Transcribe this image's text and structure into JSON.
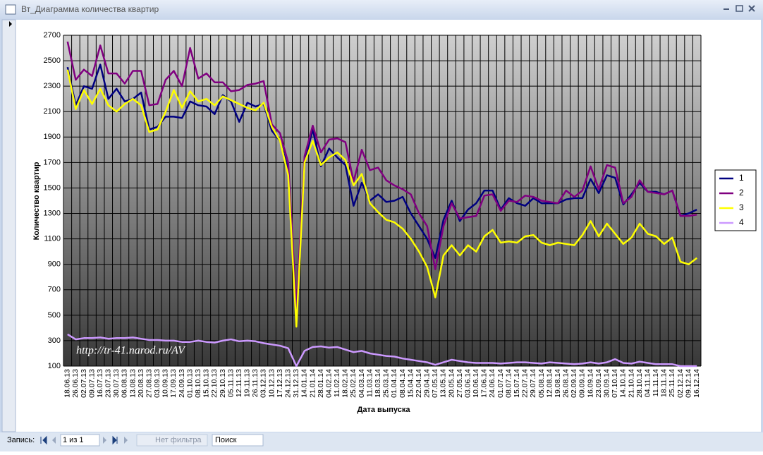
{
  "window": {
    "title": "Вт_Диаграмма количества квартир"
  },
  "chart_data": {
    "type": "line",
    "ylabel": "Количество квартир",
    "xlabel": "Дата выпуска",
    "annotation": "http://tr-41.narod.ru/AV",
    "categories": [
      "18.06.13",
      "26.06.13",
      "02.07.13",
      "09.07.13",
      "16.07.13",
      "23.07.13",
      "30.07.13",
      "06.08.13",
      "13.08.13",
      "20.08.13",
      "27.08.13",
      "03.09.13",
      "10.09.13",
      "17.09.13",
      "24.09.13",
      "01.10.13",
      "08.10.13",
      "15.10.13",
      "22.10.13",
      "29.10.13",
      "05.11.13",
      "12.11.13",
      "19.11.13",
      "26.11.13",
      "03.12.13",
      "10.12.13",
      "17.12.13",
      "24.12.13",
      "31.12.13",
      "14.01.14",
      "21.01.14",
      "28.01.14",
      "04.02.14",
      "11.02.14",
      "18.02.14",
      "25.02.14",
      "04.03.14",
      "11.03.14",
      "18.03.14",
      "25.03.14",
      "01.04.14",
      "08.04.14",
      "15.04.14",
      "22.04.14",
      "29.04.14",
      "07.05.14",
      "13.05.14",
      "20.05.14",
      "27.05.14",
      "03.06.14",
      "10.06.14",
      "17.06.14",
      "24.06.14",
      "01.07.14",
      "08.07.14",
      "15.07.14",
      "22.07.14",
      "29.07.14",
      "05.08.14",
      "12.08.14",
      "19.08.14",
      "26.08.14",
      "02.09.14",
      "09.09.14",
      "16.09.14",
      "23.09.14",
      "30.09.14",
      "07.10.14",
      "14.10.14",
      "21.10.14",
      "28.10.14",
      "04.11.14",
      "11.11.14",
      "18.11.14",
      "25.11.14",
      "02.12.14",
      "09.12.14",
      "16.12.14"
    ],
    "series": [
      {
        "name": "1",
        "color": "#000080",
        "values": [
          2450,
          2150,
          2300,
          2280,
          2470,
          2200,
          2280,
          2180,
          2200,
          2250,
          1960,
          1980,
          2060,
          2060,
          2050,
          2180,
          2150,
          2140,
          2080,
          2230,
          2180,
          2020,
          2170,
          2140,
          2160,
          1950,
          1870,
          1650,
          500,
          1700,
          1960,
          1670,
          1810,
          1740,
          1680,
          1360,
          1540,
          1400,
          1450,
          1390,
          1400,
          1430,
          1300,
          1200,
          1100,
          950,
          1250,
          1400,
          1240,
          1330,
          1380,
          1480,
          1480,
          1330,
          1420,
          1380,
          1360,
          1420,
          1380,
          1380,
          1380,
          1410,
          1420,
          1420,
          1570,
          1460,
          1600,
          1580,
          1370,
          1450,
          1540,
          1470,
          1470,
          1450,
          1480,
          1280,
          1300,
          1330
        ]
      },
      {
        "name": "2",
        "color": "#800080",
        "values": [
          2650,
          2350,
          2430,
          2380,
          2620,
          2400,
          2400,
          2320,
          2420,
          2420,
          2150,
          2160,
          2350,
          2420,
          2300,
          2600,
          2360,
          2400,
          2330,
          2330,
          2260,
          2270,
          2310,
          2320,
          2340,
          2000,
          1930,
          1700,
          560,
          1750,
          1990,
          1780,
          1880,
          1890,
          1860,
          1550,
          1800,
          1640,
          1660,
          1560,
          1520,
          1490,
          1450,
          1300,
          1200,
          860,
          1200,
          1380,
          1260,
          1270,
          1280,
          1440,
          1450,
          1320,
          1400,
          1390,
          1440,
          1430,
          1400,
          1390,
          1380,
          1480,
          1430,
          1480,
          1670,
          1490,
          1680,
          1660,
          1380,
          1430,
          1560,
          1470,
          1460,
          1450,
          1480,
          1280,
          1280,
          1290
        ]
      },
      {
        "name": "3",
        "color": "#ffff00",
        "values": [
          2430,
          2120,
          2270,
          2160,
          2280,
          2150,
          2100,
          2160,
          2200,
          2150,
          1940,
          1960,
          2100,
          2270,
          2130,
          2260,
          2180,
          2200,
          2150,
          2220,
          2190,
          2160,
          2130,
          2110,
          2170,
          1980,
          1870,
          1600,
          410,
          1700,
          1870,
          1680,
          1740,
          1780,
          1720,
          1520,
          1610,
          1380,
          1310,
          1250,
          1230,
          1180,
          1100,
          1000,
          880,
          640,
          970,
          1050,
          970,
          1050,
          1000,
          1120,
          1170,
          1070,
          1080,
          1070,
          1120,
          1130,
          1070,
          1050,
          1070,
          1060,
          1050,
          1130,
          1240,
          1120,
          1220,
          1140,
          1060,
          1110,
          1220,
          1140,
          1120,
          1060,
          1110,
          920,
          900,
          950
        ]
      },
      {
        "name": "4",
        "color": "#cc99ff",
        "values": [
          350,
          310,
          320,
          320,
          325,
          315,
          320,
          320,
          325,
          315,
          305,
          305,
          300,
          300,
          290,
          290,
          300,
          290,
          285,
          300,
          310,
          295,
          300,
          295,
          280,
          270,
          260,
          240,
          100,
          220,
          250,
          255,
          245,
          250,
          230,
          210,
          220,
          200,
          190,
          180,
          175,
          160,
          150,
          140,
          130,
          110,
          130,
          150,
          140,
          130,
          125,
          125,
          125,
          120,
          125,
          130,
          130,
          125,
          120,
          130,
          125,
          120,
          115,
          120,
          130,
          120,
          130,
          155,
          125,
          120,
          135,
          125,
          115,
          115,
          115,
          100,
          100,
          100
        ]
      }
    ],
    "ylim": [
      100,
      2700
    ],
    "yticks": [
      100,
      300,
      500,
      700,
      900,
      1100,
      1300,
      1500,
      1700,
      1900,
      2100,
      2300,
      2500,
      2700
    ],
    "grid": true,
    "legend": "right"
  },
  "status_bar": {
    "record_label": "Запись:",
    "record_position": "1 из 1",
    "filter": "Нет фильтра",
    "search": "Поиск"
  }
}
